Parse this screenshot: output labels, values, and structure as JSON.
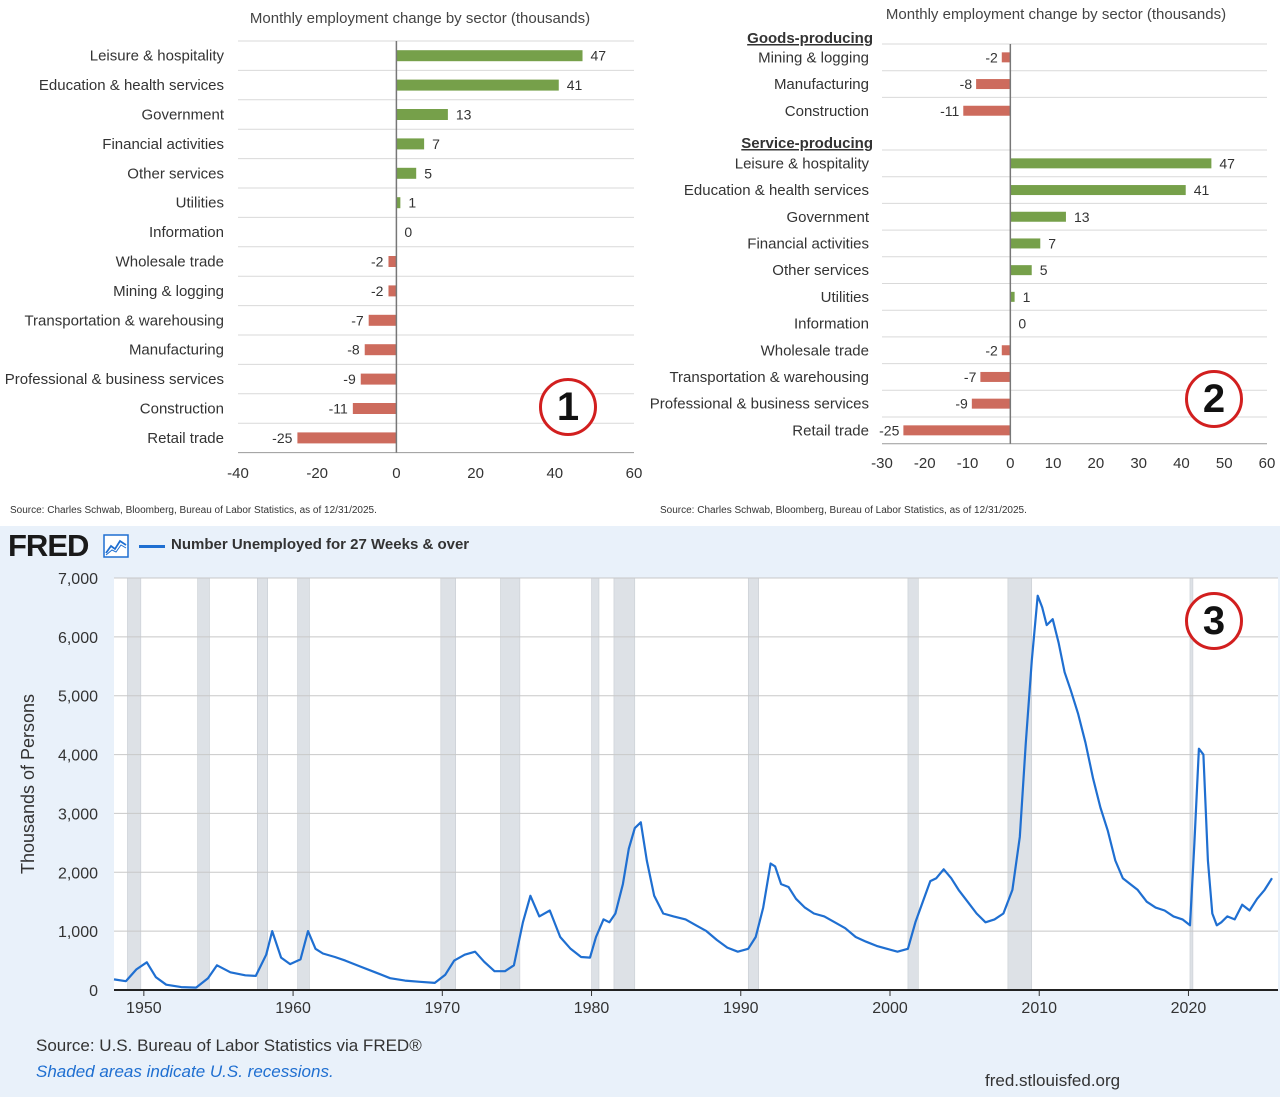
{
  "panel1": {
    "source": "Source: Charles Schwab, Bloomberg, Bureau of Labor Statistics, as of 12/31/2025.",
    "badge": "1"
  },
  "panel2": {
    "source": "Source: Charles Schwab, Bloomberg, Bureau of Labor Statistics, as of 12/31/2025.",
    "badge": "2"
  },
  "panel3": {
    "logo": "FRED",
    "legend": "Number Unemployed for 27 Weeks & over",
    "source": "Source: U.S. Bureau of Labor Statistics via FRED®",
    "shaded_note": "Shaded areas indicate U.S. recessions.",
    "url": "fred.stlouisfed.org",
    "badge": "3"
  },
  "colors": {
    "positive": "#76a04a",
    "negative": "#cd6b5d",
    "fred_line": "#1f6fd1",
    "fred_bg": "#e9f1fa",
    "recession": "#dde1e6",
    "badge": "#d21f1f"
  },
  "chart_data": [
    {
      "type": "bar",
      "orientation": "horizontal",
      "title": "Monthly employment change by sector (thousands)",
      "categories": [
        "Leisure & hospitality",
        "Education & health services",
        "Government",
        "Financial activities",
        "Other services",
        "Utilities",
        "Information",
        "Wholesale trade",
        "Mining & logging",
        "Transportation & warehousing",
        "Manufacturing",
        "Professional & business services",
        "Construction",
        "Retail trade"
      ],
      "values": [
        47,
        41,
        13,
        7,
        5,
        1,
        0,
        -2,
        -2,
        -7,
        -8,
        -9,
        -11,
        -25
      ],
      "xlim": [
        -40,
        60
      ],
      "xticks": [
        -40,
        -20,
        0,
        20,
        40,
        60
      ]
    },
    {
      "type": "bar",
      "orientation": "horizontal",
      "title": "Monthly employment change by sector (thousands)",
      "groups": [
        {
          "name": "Goods-producing",
          "categories": [
            "Mining & logging",
            "Manufacturing",
            "Construction"
          ],
          "values": [
            -2,
            -8,
            -11
          ]
        },
        {
          "name": "Service-producing",
          "categories": [
            "Leisure & hospitality",
            "Education & health services",
            "Government",
            "Financial activities",
            "Other services",
            "Utilities",
            "Information",
            "Wholesale trade",
            "Transportation & warehousing",
            "Professional & business services",
            "Retail trade"
          ],
          "values": [
            47,
            41,
            13,
            7,
            5,
            1,
            0,
            -2,
            -7,
            -9,
            -25
          ]
        }
      ],
      "xlim": [
        -30,
        60
      ],
      "xticks": [
        -30,
        -20,
        -10,
        0,
        10,
        20,
        30,
        40,
        50,
        60
      ]
    },
    {
      "type": "line",
      "ylabel": "Thousands of Persons",
      "ylim": [
        0,
        7000
      ],
      "yticks": [
        0,
        1000,
        2000,
        3000,
        4000,
        5000,
        6000,
        7000
      ],
      "ytick_labels": [
        "0",
        "1,000",
        "2,000",
        "3,000",
        "4,000",
        "5,000",
        "6,000",
        "7,000"
      ],
      "xlim": [
        1948,
        2026
      ],
      "xticks": [
        1950,
        1960,
        1970,
        1980,
        1990,
        2000,
        2010,
        2020
      ],
      "grid": true,
      "recessions": [
        [
          1948.9,
          1949.8
        ],
        [
          1953.6,
          1954.4
        ],
        [
          1957.6,
          1958.3
        ],
        [
          1960.3,
          1961.1
        ],
        [
          1969.9,
          1970.9
        ],
        [
          1973.9,
          1975.2
        ],
        [
          1980.0,
          1980.5
        ],
        [
          1981.5,
          1982.9
        ],
        [
          1990.5,
          1991.2
        ],
        [
          2001.2,
          2001.9
        ],
        [
          2007.9,
          2009.5
        ],
        [
          2020.1,
          2020.3
        ]
      ],
      "series": [
        {
          "name": "Number Unemployed for 27 Weeks & over",
          "x": [
            1948.0,
            1948.8,
            1949.5,
            1950.2,
            1950.8,
            1951.5,
            1952.5,
            1953.5,
            1954.3,
            1954.9,
            1955.8,
            1956.8,
            1957.5,
            1958.2,
            1958.6,
            1959.2,
            1959.8,
            1960.5,
            1961.0,
            1961.5,
            1962.0,
            1962.8,
            1963.5,
            1964.5,
            1965.5,
            1966.5,
            1967.5,
            1968.5,
            1969.5,
            1970.2,
            1970.8,
            1971.5,
            1972.2,
            1972.8,
            1973.5,
            1974.2,
            1974.8,
            1975.4,
            1975.9,
            1976.5,
            1977.2,
            1977.9,
            1978.6,
            1979.3,
            1979.9,
            1980.3,
            1980.8,
            1981.2,
            1981.6,
            1982.1,
            1982.5,
            1982.9,
            1983.3,
            1983.7,
            1984.2,
            1984.8,
            1985.5,
            1986.3,
            1987.0,
            1987.7,
            1988.4,
            1989.1,
            1989.8,
            1990.5,
            1991.0,
            1991.5,
            1992.0,
            1992.3,
            1992.7,
            1993.2,
            1993.7,
            1994.3,
            1994.9,
            1995.6,
            1996.3,
            1997.0,
            1997.7,
            1998.4,
            1999.1,
            1999.8,
            2000.5,
            2001.2,
            2001.7,
            2002.2,
            2002.7,
            2003.1,
            2003.6,
            2004.1,
            2004.6,
            2005.2,
            2005.8,
            2006.4,
            2007.0,
            2007.6,
            2008.2,
            2008.7,
            2009.1,
            2009.5,
            2009.9,
            2010.2,
            2010.5,
            2010.9,
            2011.3,
            2011.7,
            2012.1,
            2012.6,
            2013.1,
            2013.6,
            2014.1,
            2014.6,
            2015.1,
            2015.6,
            2016.1,
            2016.6,
            2017.2,
            2017.8,
            2018.4,
            2019.0,
            2019.6,
            2020.1,
            2020.4,
            2020.7,
            2021.0,
            2021.3,
            2021.6,
            2021.9,
            2022.2,
            2022.6,
            2023.1,
            2023.6,
            2024.1,
            2024.6,
            2025.1,
            2025.6
          ],
          "y": [
            180,
            150,
            350,
            470,
            220,
            90,
            50,
            40,
            200,
            420,
            300,
            250,
            240,
            600,
            1000,
            550,
            440,
            520,
            1000,
            700,
            620,
            560,
            500,
            400,
            300,
            200,
            160,
            140,
            120,
            260,
            500,
            600,
            650,
            480,
            320,
            320,
            420,
            1150,
            1600,
            1250,
            1350,
            900,
            700,
            560,
            550,
            900,
            1200,
            1150,
            1300,
            1800,
            2400,
            2750,
            2850,
            2200,
            1600,
            1300,
            1250,
            1200,
            1100,
            1000,
            850,
            720,
            650,
            700,
            900,
            1400,
            2150,
            2100,
            1800,
            1750,
            1550,
            1400,
            1300,
            1250,
            1150,
            1050,
            900,
            820,
            750,
            700,
            650,
            700,
            1150,
            1500,
            1850,
            1900,
            2050,
            1900,
            1700,
            1500,
            1300,
            1150,
            1200,
            1300,
            1700,
            2600,
            4200,
            5600,
            6700,
            6500,
            6200,
            6300,
            5900,
            5400,
            5100,
            4700,
            4200,
            3600,
            3100,
            2700,
            2200,
            1900,
            1800,
            1700,
            1500,
            1400,
            1350,
            1250,
            1200,
            1100,
            2500,
            4100,
            4000,
            2200,
            1300,
            1100,
            1150,
            1250,
            1200,
            1450,
            1350,
            1550,
            1700,
            1900
          ]
        }
      ]
    }
  ]
}
